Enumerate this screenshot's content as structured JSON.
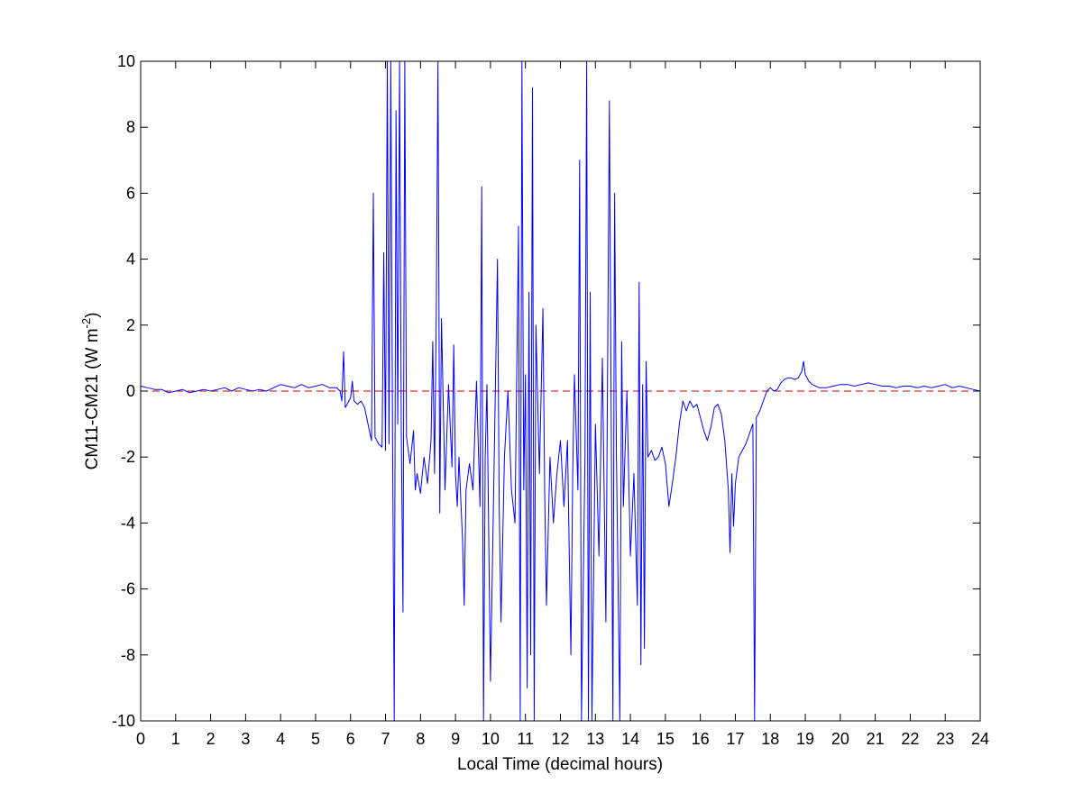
{
  "chart_data": {
    "type": "line",
    "xlabel": "Local Time (decimal hours)",
    "ylabel": {
      "main": "CM11-CM21 (W m",
      "sup": "-2",
      "close": ")"
    },
    "xlim": [
      0,
      24
    ],
    "ylim": [
      -10,
      10
    ],
    "xticks": [
      0,
      1,
      2,
      3,
      4,
      5,
      6,
      7,
      8,
      9,
      10,
      11,
      12,
      13,
      14,
      15,
      16,
      17,
      18,
      19,
      20,
      21,
      22,
      23,
      24
    ],
    "yticks": [
      -10,
      -8,
      -6,
      -4,
      -2,
      0,
      2,
      4,
      6,
      8,
      10
    ],
    "grid": false,
    "colors": {
      "series": "#0000ff",
      "reference": "#cc0000",
      "axes": "#000000"
    },
    "reference_line": {
      "y": 0,
      "style": "dashed"
    },
    "series": [
      {
        "points": [
          [
            0.0,
            0.15
          ],
          [
            0.2,
            0.1
          ],
          [
            0.4,
            0.05
          ],
          [
            0.6,
            0.05
          ],
          [
            0.8,
            -0.05
          ],
          [
            1.0,
            0.0
          ],
          [
            1.2,
            0.05
          ],
          [
            1.4,
            -0.05
          ],
          [
            1.6,
            0.0
          ],
          [
            1.8,
            0.05
          ],
          [
            2.0,
            0.0
          ],
          [
            2.2,
            0.05
          ],
          [
            2.4,
            0.1
          ],
          [
            2.6,
            0.0
          ],
          [
            2.8,
            0.1
          ],
          [
            3.0,
            0.05
          ],
          [
            3.2,
            0.0
          ],
          [
            3.4,
            0.05
          ],
          [
            3.6,
            0.0
          ],
          [
            3.8,
            0.1
          ],
          [
            4.0,
            0.2
          ],
          [
            4.2,
            0.15
          ],
          [
            4.4,
            0.1
          ],
          [
            4.6,
            0.2
          ],
          [
            4.8,
            0.1
          ],
          [
            5.0,
            0.15
          ],
          [
            5.2,
            0.2
          ],
          [
            5.4,
            0.1
          ],
          [
            5.6,
            0.1
          ],
          [
            5.7,
            0.0
          ],
          [
            5.75,
            -0.3
          ],
          [
            5.8,
            1.2
          ],
          [
            5.85,
            -0.5
          ],
          [
            5.95,
            -0.3
          ],
          [
            6.0,
            -0.2
          ],
          [
            6.05,
            0.3
          ],
          [
            6.1,
            -0.3
          ],
          [
            6.2,
            -0.4
          ],
          [
            6.3,
            -0.3
          ],
          [
            6.4,
            -0.5
          ],
          [
            6.5,
            -1.0
          ],
          [
            6.6,
            -1.5
          ],
          [
            6.65,
            6.0
          ],
          [
            6.7,
            -1.4
          ],
          [
            6.8,
            -1.6
          ],
          [
            6.9,
            -1.7
          ],
          [
            6.95,
            4.2
          ],
          [
            7.0,
            -1.8
          ],
          [
            7.05,
            10.0
          ],
          [
            7.1,
            -1.6
          ],
          [
            7.15,
            10.0
          ],
          [
            7.2,
            -1.2
          ],
          [
            7.25,
            -10.0
          ],
          [
            7.3,
            8.5
          ],
          [
            7.35,
            -1.0
          ],
          [
            7.4,
            10.0
          ],
          [
            7.45,
            -1.2
          ],
          [
            7.5,
            -6.7
          ],
          [
            7.55,
            10.0
          ],
          [
            7.6,
            -1.4
          ],
          [
            7.7,
            -2.2
          ],
          [
            7.8,
            -1.2
          ],
          [
            7.85,
            -3.0
          ],
          [
            7.9,
            -2.5
          ],
          [
            8.0,
            -3.1
          ],
          [
            8.1,
            -2.0
          ],
          [
            8.2,
            -2.8
          ],
          [
            8.3,
            -1.5
          ],
          [
            8.35,
            1.5
          ],
          [
            8.4,
            -2.5
          ],
          [
            8.45,
            2.3
          ],
          [
            8.5,
            10.0
          ],
          [
            8.55,
            -3.7
          ],
          [
            8.6,
            2.2
          ],
          [
            8.7,
            -3.0
          ],
          [
            8.8,
            0.2
          ],
          [
            8.9,
            -2.3
          ],
          [
            8.95,
            1.4
          ],
          [
            9.0,
            -2.5
          ],
          [
            9.05,
            -3.5
          ],
          [
            9.1,
            -2.0
          ],
          [
            9.2,
            -4.5
          ],
          [
            9.25,
            -6.5
          ],
          [
            9.3,
            -3.0
          ],
          [
            9.4,
            -2.2
          ],
          [
            9.5,
            -3.0
          ],
          [
            9.6,
            0.3
          ],
          [
            9.7,
            -3.5
          ],
          [
            9.75,
            6.2
          ],
          [
            9.8,
            -10.0
          ],
          [
            9.85,
            -2.0
          ],
          [
            9.9,
            0.2
          ],
          [
            10.0,
            -8.8
          ],
          [
            10.1,
            -2.5
          ],
          [
            10.2,
            4.0
          ],
          [
            10.25,
            -3.5
          ],
          [
            10.3,
            -7.0
          ],
          [
            10.4,
            -2.0
          ],
          [
            10.5,
            0.0
          ],
          [
            10.6,
            -3.0
          ],
          [
            10.7,
            -4.0
          ],
          [
            10.8,
            5.0
          ],
          [
            10.85,
            -10.0
          ],
          [
            10.9,
            10.0
          ],
          [
            10.95,
            -3.0
          ],
          [
            11.0,
            0.5
          ],
          [
            11.05,
            -9.0
          ],
          [
            11.1,
            3.0
          ],
          [
            11.15,
            -8.0
          ],
          [
            11.2,
            9.2
          ],
          [
            11.25,
            -10.0
          ],
          [
            11.3,
            2.0
          ],
          [
            11.4,
            -2.5
          ],
          [
            11.5,
            2.5
          ],
          [
            11.55,
            -3.0
          ],
          [
            11.6,
            -6.5
          ],
          [
            11.7,
            -2.0
          ],
          [
            11.8,
            -4.0
          ],
          [
            11.9,
            -2.5
          ],
          [
            12.0,
            -1.5
          ],
          [
            12.1,
            -3.5
          ],
          [
            12.2,
            -1.5
          ],
          [
            12.3,
            -8.0
          ],
          [
            12.35,
            -2.5
          ],
          [
            12.4,
            0.5
          ],
          [
            12.5,
            -3.0
          ],
          [
            12.55,
            7.0
          ],
          [
            12.6,
            -10.0
          ],
          [
            12.7,
            -2.0
          ],
          [
            12.75,
            10.0
          ],
          [
            12.8,
            -10.0
          ],
          [
            12.85,
            3.0
          ],
          [
            12.9,
            -10.0
          ],
          [
            13.0,
            -1.0
          ],
          [
            13.1,
            -5.0
          ],
          [
            13.2,
            1.0
          ],
          [
            13.3,
            -7.0
          ],
          [
            13.4,
            8.8
          ],
          [
            13.5,
            -10.0
          ],
          [
            13.55,
            6.0
          ],
          [
            13.6,
            -2.0
          ],
          [
            13.7,
            -10.0
          ],
          [
            13.75,
            1.5
          ],
          [
            13.8,
            -3.5
          ],
          [
            13.9,
            0.0
          ],
          [
            14.0,
            -5.0
          ],
          [
            14.1,
            -2.5
          ],
          [
            14.2,
            -6.5
          ],
          [
            14.25,
            3.3
          ],
          [
            14.3,
            -8.3
          ],
          [
            14.35,
            0.2
          ],
          [
            14.4,
            -7.8
          ],
          [
            14.45,
            0.9
          ],
          [
            14.5,
            -2.0
          ],
          [
            14.6,
            -1.8
          ],
          [
            14.7,
            -2.1
          ],
          [
            14.8,
            -2.0
          ],
          [
            14.9,
            -1.7
          ],
          [
            15.0,
            -2.2
          ],
          [
            15.1,
            -3.5
          ],
          [
            15.2,
            -2.8
          ],
          [
            15.3,
            -2.0
          ],
          [
            15.4,
            -1.0
          ],
          [
            15.5,
            -0.3
          ],
          [
            15.6,
            -0.6
          ],
          [
            15.7,
            -0.3
          ],
          [
            15.8,
            -0.5
          ],
          [
            15.9,
            -0.4
          ],
          [
            16.0,
            -0.8
          ],
          [
            16.1,
            -1.2
          ],
          [
            16.2,
            -1.5
          ],
          [
            16.3,
            -1.1
          ],
          [
            16.4,
            -0.5
          ],
          [
            16.5,
            -0.4
          ],
          [
            16.6,
            -0.7
          ],
          [
            16.7,
            -1.5
          ],
          [
            16.8,
            -3.0
          ],
          [
            16.85,
            -4.9
          ],
          [
            16.9,
            -2.5
          ],
          [
            16.95,
            -4.1
          ],
          [
            17.0,
            -2.8
          ],
          [
            17.1,
            -2.0
          ],
          [
            17.2,
            -1.8
          ],
          [
            17.3,
            -1.6
          ],
          [
            17.4,
            -1.3
          ],
          [
            17.5,
            -1.0
          ],
          [
            17.55,
            -10.0
          ],
          [
            17.6,
            -0.8
          ],
          [
            17.7,
            -0.6
          ],
          [
            17.8,
            -0.3
          ],
          [
            17.9,
            0.0
          ],
          [
            18.0,
            0.1
          ],
          [
            18.1,
            0.0
          ],
          [
            18.2,
            0.05
          ],
          [
            18.3,
            0.25
          ],
          [
            18.4,
            0.35
          ],
          [
            18.5,
            0.4
          ],
          [
            18.6,
            0.4
          ],
          [
            18.7,
            0.35
          ],
          [
            18.8,
            0.4
          ],
          [
            18.9,
            0.6
          ],
          [
            18.95,
            0.9
          ],
          [
            19.0,
            0.5
          ],
          [
            19.1,
            0.3
          ],
          [
            19.2,
            0.2
          ],
          [
            19.4,
            0.1
          ],
          [
            19.6,
            0.1
          ],
          [
            19.8,
            0.15
          ],
          [
            20.0,
            0.2
          ],
          [
            20.2,
            0.2
          ],
          [
            20.4,
            0.15
          ],
          [
            20.6,
            0.2
          ],
          [
            20.8,
            0.25
          ],
          [
            21.0,
            0.2
          ],
          [
            21.2,
            0.15
          ],
          [
            21.4,
            0.15
          ],
          [
            21.6,
            0.1
          ],
          [
            21.8,
            0.15
          ],
          [
            22.0,
            0.15
          ],
          [
            22.2,
            0.1
          ],
          [
            22.4,
            0.15
          ],
          [
            22.6,
            0.1
          ],
          [
            22.8,
            0.15
          ],
          [
            23.0,
            0.2
          ],
          [
            23.2,
            0.1
          ],
          [
            23.4,
            0.15
          ],
          [
            23.6,
            0.1
          ],
          [
            23.8,
            0.05
          ],
          [
            24.0,
            0.0
          ]
        ]
      }
    ]
  }
}
